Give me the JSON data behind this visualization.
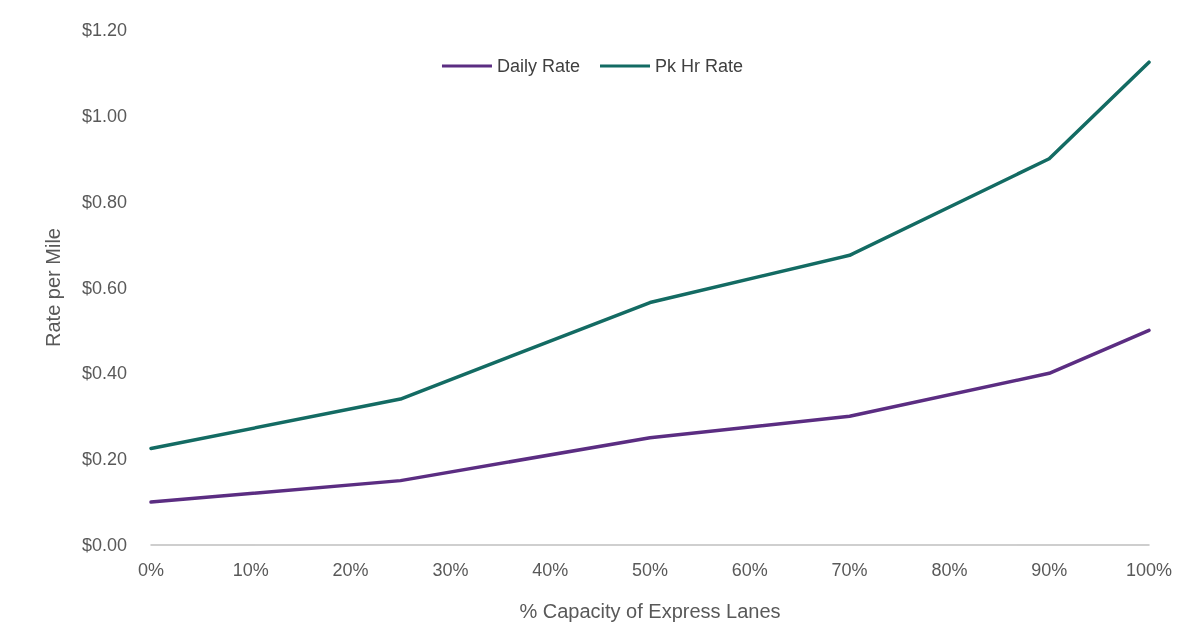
{
  "chart_data": {
    "type": "line",
    "xlabel": "% Capacity of Express Lanes",
    "ylabel": "Rate per Mile",
    "series": [
      {
        "name": "Daily Rate",
        "color": "#5b2d82",
        "x": [
          0,
          25,
          50,
          70,
          90,
          100
        ],
        "values": [
          0.1,
          0.15,
          0.25,
          0.3,
          0.4,
          0.5
        ]
      },
      {
        "name": "Pk Hr Rate",
        "color": "#136b63",
        "x": [
          0,
          25,
          50,
          70,
          90,
          100
        ],
        "values": [
          0.225,
          0.34,
          0.565,
          0.675,
          0.9,
          1.125
        ]
      }
    ],
    "xlim": [
      0,
      100
    ],
    "xticks": [
      {
        "value": 0,
        "label": "0%"
      },
      {
        "value": 10,
        "label": "10%"
      },
      {
        "value": 20,
        "label": "20%"
      },
      {
        "value": 30,
        "label": "30%"
      },
      {
        "value": 40,
        "label": "40%"
      },
      {
        "value": 50,
        "label": "50%"
      },
      {
        "value": 60,
        "label": "60%"
      },
      {
        "value": 70,
        "label": "70%"
      },
      {
        "value": 80,
        "label": "80%"
      },
      {
        "value": 90,
        "label": "90%"
      },
      {
        "value": 100,
        "label": "100%"
      }
    ],
    "ylim": [
      0,
      1.2
    ],
    "yticks": [
      {
        "value": 0,
        "label": "$0.00"
      },
      {
        "value": 0.2,
        "label": "$0.20"
      },
      {
        "value": 0.4,
        "label": "$0.40"
      },
      {
        "value": 0.6,
        "label": "$0.60"
      },
      {
        "value": 0.8,
        "label": "$0.80"
      },
      {
        "value": 1.0,
        "label": "$1.00"
      },
      {
        "value": 1.2,
        "label": "$1.20"
      }
    ],
    "grid": false,
    "legend": "top",
    "marker": "none",
    "line_style": "solid"
  }
}
